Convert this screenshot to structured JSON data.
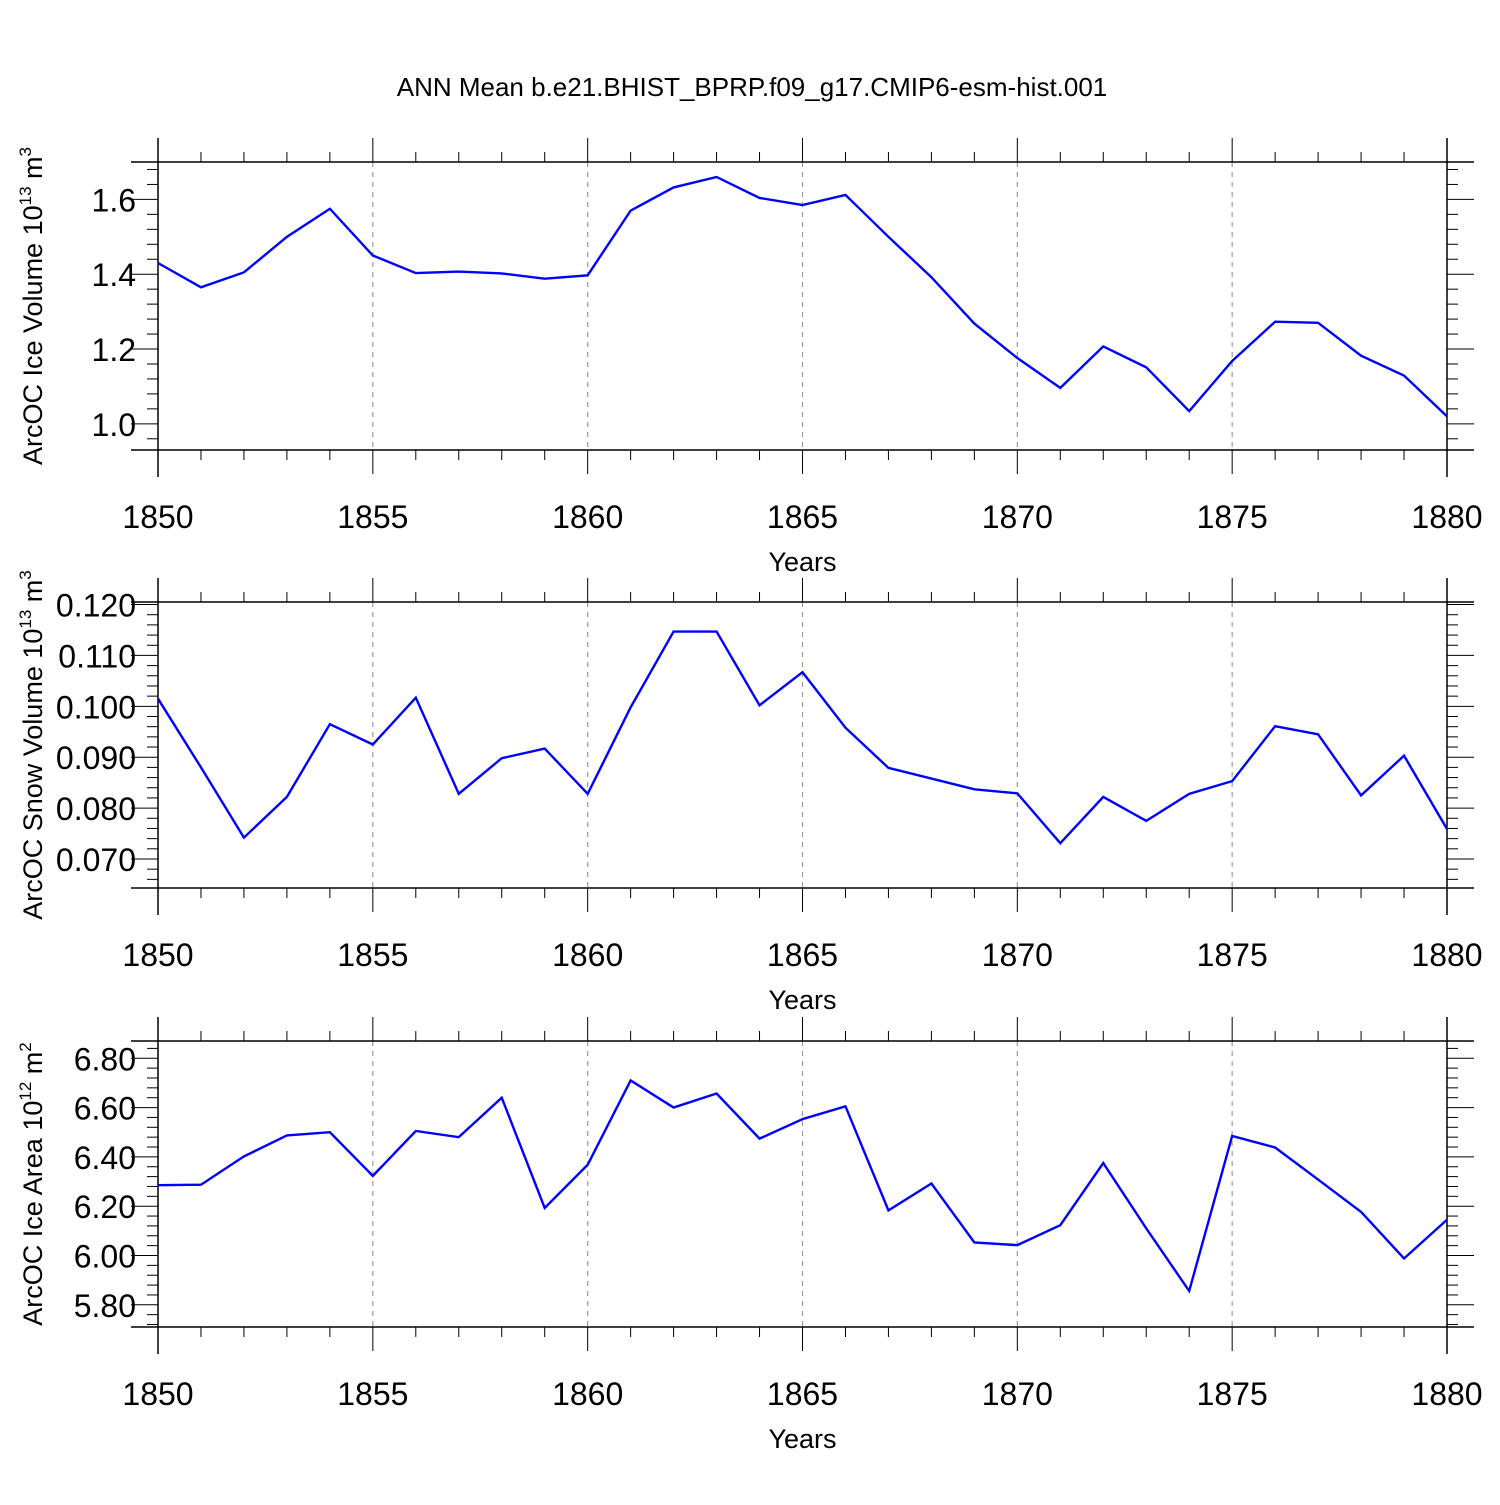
{
  "title": "ANN Mean b.e21.BHIST_BPRP.f09_g17.CMIP6-esm-hist.001",
  "colors": {
    "line": "#0000ff",
    "axis": "#000000",
    "grid": "#9a9a9a"
  },
  "x": [
    1850,
    1851,
    1852,
    1853,
    1854,
    1855,
    1856,
    1857,
    1858,
    1859,
    1860,
    1861,
    1862,
    1863,
    1864,
    1865,
    1866,
    1867,
    1868,
    1869,
    1870,
    1871,
    1872,
    1873,
    1874,
    1875,
    1876,
    1877,
    1878,
    1879,
    1880
  ],
  "chart_data": [
    {
      "type": "line",
      "ylabel": "ArcOC Ice Volume 10",
      "ylabel_exp": "13",
      "ylabel_unit": " m",
      "ylabel_unit_exp": "3",
      "xlabel": "Years",
      "xlim": [
        1850,
        1880
      ],
      "ylim": [
        0.93,
        1.7
      ],
      "ytick_values": [
        1.0,
        1.2,
        1.4,
        1.6
      ],
      "ytick_labels": [
        "1.0",
        "1.2",
        "1.4",
        "1.6"
      ],
      "xtick_values": [
        1850,
        1855,
        1860,
        1865,
        1870,
        1875,
        1880
      ],
      "xtick_labels": [
        "1850",
        "1855",
        "1860",
        "1865",
        "1870",
        "1875",
        "1880"
      ],
      "grid": true,
      "series": [
        {
          "name": "ArcOC Ice Volume",
          "values": [
            1.43,
            1.365,
            1.405,
            1.5,
            1.575,
            1.45,
            1.403,
            1.407,
            1.402,
            1.388,
            1.397,
            1.57,
            1.632,
            1.66,
            1.604,
            1.585,
            1.612,
            1.5,
            1.392,
            1.268,
            1.176,
            1.096,
            1.207,
            1.151,
            1.034,
            1.168,
            1.273,
            1.27,
            1.182,
            1.129,
            1.02
          ]
        }
      ]
    },
    {
      "type": "line",
      "ylabel": "ArcOC Snow Volume 10",
      "ylabel_exp": "13",
      "ylabel_unit": " m",
      "ylabel_unit_exp": "3",
      "xlabel": "Years",
      "xlim": [
        1850,
        1880
      ],
      "ylim": [
        0.0643,
        0.1205
      ],
      "ytick_values": [
        0.07,
        0.08,
        0.09,
        0.1,
        0.11,
        0.12
      ],
      "ytick_labels": [
        "0.070",
        "0.080",
        "0.090",
        "0.100",
        "0.110",
        "0.120"
      ],
      "xtick_values": [
        1850,
        1855,
        1860,
        1865,
        1870,
        1875,
        1880
      ],
      "xtick_labels": [
        "1850",
        "1855",
        "1860",
        "1865",
        "1870",
        "1875",
        "1880"
      ],
      "grid": true,
      "series": [
        {
          "name": "ArcOC Snow Volume",
          "values": [
            0.1015,
            0.088,
            0.0742,
            0.0822,
            0.0965,
            0.0925,
            0.1017,
            0.0828,
            0.0898,
            0.0917,
            0.0828,
            0.0998,
            0.1147,
            0.1147,
            0.1002,
            0.1067,
            0.0958,
            0.0879,
            0.0858,
            0.0837,
            0.0829,
            0.0731,
            0.0822,
            0.0775,
            0.0828,
            0.0853,
            0.0961,
            0.0945,
            0.0825,
            0.0903,
            0.0759
          ]
        }
      ]
    },
    {
      "type": "line",
      "ylabel": "ArcOC Ice Area 10",
      "ylabel_exp": "12",
      "ylabel_unit": " m",
      "ylabel_unit_exp": "2",
      "xlabel": "Years",
      "xlim": [
        1850,
        1880
      ],
      "ylim": [
        5.71,
        6.87
      ],
      "ytick_values": [
        5.8,
        6.0,
        6.2,
        6.4,
        6.6,
        6.8
      ],
      "ytick_labels": [
        "5.80",
        "6.00",
        "6.20",
        "6.40",
        "6.60",
        "6.80"
      ],
      "xtick_values": [
        1850,
        1855,
        1860,
        1865,
        1870,
        1875,
        1880
      ],
      "xtick_labels": [
        "1850",
        "1855",
        "1860",
        "1865",
        "1870",
        "1875",
        "1880"
      ],
      "grid": true,
      "series": [
        {
          "name": "ArcOC Ice Area",
          "values": [
            6.285,
            6.287,
            6.402,
            6.487,
            6.5,
            6.323,
            6.505,
            6.48,
            6.64,
            6.193,
            6.368,
            6.71,
            6.6,
            6.657,
            6.474,
            6.553,
            6.605,
            6.183,
            6.292,
            6.053,
            6.042,
            6.123,
            6.375,
            6.11,
            5.856,
            6.485,
            6.438,
            6.308,
            6.177,
            5.988,
            6.145
          ]
        }
      ]
    }
  ]
}
